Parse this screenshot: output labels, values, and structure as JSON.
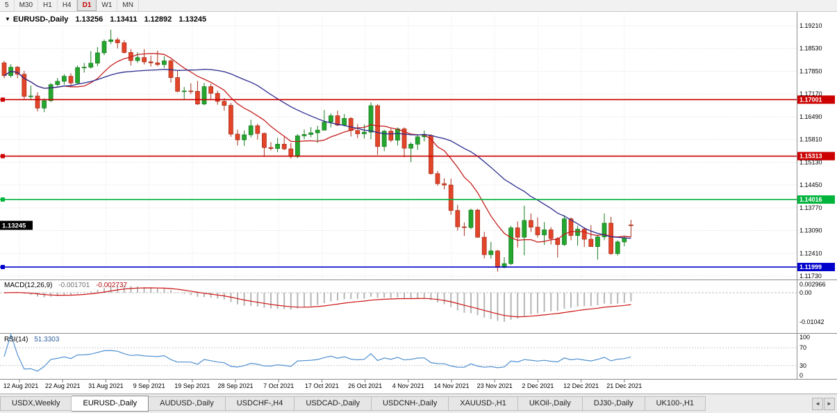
{
  "icons": {
    "collapse": "▼"
  },
  "toolbar": {
    "timeframes": [
      {
        "label": "5",
        "active": false
      },
      {
        "label": "M30",
        "active": false
      },
      {
        "label": "H1",
        "active": false
      },
      {
        "label": "H4",
        "active": false
      },
      {
        "label": "D1",
        "active": true
      },
      {
        "label": "W1",
        "active": false
      },
      {
        "label": "MN",
        "active": false
      }
    ]
  },
  "chart_data": {
    "type": "candlestick",
    "title": "EURUSD-,Daily",
    "ohlc_display": {
      "open": "1.13256",
      "high": "1.13411",
      "low": "1.12892",
      "close": "1.13245"
    },
    "price_axis_labels": [
      "1.19210",
      "1.18530",
      "1.17850",
      "1.17170",
      "1.16490",
      "1.15810",
      "1.15130",
      "1.14450",
      "1.13770",
      "1.13090",
      "1.12410",
      "1.11730"
    ],
    "date_labels": [
      "12 Aug 2021",
      "22 Aug 2021",
      "31 Aug 2021",
      "9 Sep 2021",
      "19 Sep 2021",
      "28 Sep 2021",
      "7 Oct 2021",
      "17 Oct 2021",
      "26 Oct 2021",
      "4 Nov 2021",
      "14 Nov 2021",
      "23 Nov 2021",
      "2 Dec 2021",
      "12 Dec 2021",
      "21 Dec 2021"
    ],
    "hlines": [
      {
        "price": 1.17001,
        "label": "1.17001",
        "color": "#cc0000"
      },
      {
        "price": 1.15313,
        "label": "1.15313",
        "color": "#cc0000"
      },
      {
        "price": 1.14016,
        "label": "1.14016",
        "color": "#00b43c"
      },
      {
        "price": 1.11999,
        "label": "1.11999",
        "color": "#0000cc"
      }
    ],
    "current_price": {
      "price": 1.13245,
      "label": "1.13245",
      "bg": "#000000"
    },
    "moving_averages": [
      {
        "period": 10,
        "color": "#c61d1d"
      },
      {
        "period": 24,
        "color": "#2a2a8f"
      }
    ],
    "colors": {
      "up": "#25a62e",
      "up_stroke": "#177a1f",
      "down": "#e2452a",
      "down_stroke": "#a82c17",
      "grid": "#d9d9d9"
    },
    "candles": [
      [
        1.181,
        1.1816,
        1.1764,
        1.1772
      ],
      [
        1.1772,
        1.1806,
        1.1766,
        1.1797
      ],
      [
        1.1797,
        1.1801,
        1.1764,
        1.1776
      ],
      [
        1.1776,
        1.1786,
        1.1702,
        1.171
      ],
      [
        1.171,
        1.1742,
        1.17,
        1.1711
      ],
      [
        1.1711,
        1.1722,
        1.1665,
        1.1675
      ],
      [
        1.1675,
        1.1704,
        1.1663,
        1.1697
      ],
      [
        1.1697,
        1.175,
        1.1693,
        1.1745
      ],
      [
        1.1745,
        1.1765,
        1.174,
        1.1755
      ],
      [
        1.1755,
        1.1776,
        1.1745,
        1.177
      ],
      [
        1.177,
        1.1779,
        1.1743,
        1.175
      ],
      [
        1.175,
        1.1802,
        1.1748,
        1.1796
      ],
      [
        1.1796,
        1.181,
        1.1781,
        1.1797
      ],
      [
        1.1797,
        1.1845,
        1.1793,
        1.1809
      ],
      [
        1.1809,
        1.1857,
        1.18,
        1.184
      ],
      [
        1.184,
        1.188,
        1.1833,
        1.1874
      ],
      [
        1.1874,
        1.1909,
        1.1866,
        1.1879
      ],
      [
        1.1879,
        1.1885,
        1.1853,
        1.187
      ],
      [
        1.187,
        1.1878,
        1.1838,
        1.1841
      ],
      [
        1.1841,
        1.1851,
        1.1802,
        1.1817
      ],
      [
        1.1817,
        1.1842,
        1.181,
        1.1826
      ],
      [
        1.1826,
        1.1851,
        1.1805,
        1.1813
      ],
      [
        1.1813,
        1.1832,
        1.1799,
        1.181
      ],
      [
        1.181,
        1.1847,
        1.18,
        1.1805
      ],
      [
        1.1805,
        1.183,
        1.1795,
        1.1816
      ],
      [
        1.1816,
        1.1821,
        1.1751,
        1.1766
      ],
      [
        1.1766,
        1.1788,
        1.1722,
        1.1725
      ],
      [
        1.1725,
        1.1738,
        1.17,
        1.1726
      ],
      [
        1.1726,
        1.1749,
        1.1717,
        1.1725
      ],
      [
        1.1725,
        1.1756,
        1.1684,
        1.1687
      ],
      [
        1.1687,
        1.175,
        1.1683,
        1.1739
      ],
      [
        1.1739,
        1.1747,
        1.1701,
        1.1719
      ],
      [
        1.1719,
        1.1727,
        1.1685,
        1.1695
      ],
      [
        1.1695,
        1.1705,
        1.1667,
        1.1683
      ],
      [
        1.1683,
        1.169,
        1.1589,
        1.1597
      ],
      [
        1.1597,
        1.161,
        1.1563,
        1.158
      ],
      [
        1.158,
        1.1608,
        1.1562,
        1.1595
      ],
      [
        1.1595,
        1.164,
        1.1587,
        1.1622
      ],
      [
        1.1622,
        1.1628,
        1.1581,
        1.1599
      ],
      [
        1.1599,
        1.1602,
        1.1529,
        1.1557
      ],
      [
        1.1557,
        1.1573,
        1.1548,
        1.1554
      ],
      [
        1.1554,
        1.1586,
        1.1543,
        1.1567
      ],
      [
        1.1567,
        1.1589,
        1.1549,
        1.1553
      ],
      [
        1.1553,
        1.1571,
        1.1524,
        1.153
      ],
      [
        1.153,
        1.1597,
        1.1525,
        1.1592
      ],
      [
        1.1592,
        1.1611,
        1.1582,
        1.1596
      ],
      [
        1.1596,
        1.1618,
        1.1588,
        1.1601
      ],
      [
        1.1601,
        1.1622,
        1.1571,
        1.1609
      ],
      [
        1.1609,
        1.1669,
        1.1608,
        1.1633
      ],
      [
        1.1633,
        1.1659,
        1.1617,
        1.1652
      ],
      [
        1.1652,
        1.1667,
        1.1621,
        1.1624
      ],
      [
        1.1624,
        1.1657,
        1.162,
        1.1644
      ],
      [
        1.1644,
        1.1648,
        1.159,
        1.1608
      ],
      [
        1.1608,
        1.1627,
        1.1585,
        1.1598
      ],
      [
        1.1598,
        1.1626,
        1.1584,
        1.1603
      ],
      [
        1.1603,
        1.1692,
        1.1582,
        1.1682
      ],
      [
        1.1682,
        1.1687,
        1.1535,
        1.156
      ],
      [
        1.156,
        1.161,
        1.1546,
        1.1606
      ],
      [
        1.1606,
        1.1614,
        1.1573,
        1.1579
      ],
      [
        1.1579,
        1.1617,
        1.1563,
        1.1613
      ],
      [
        1.1613,
        1.1617,
        1.1528,
        1.1555
      ],
      [
        1.1555,
        1.1573,
        1.1513,
        1.1567
      ],
      [
        1.1567,
        1.1595,
        1.155,
        1.1589
      ],
      [
        1.1589,
        1.1608,
        1.1575,
        1.1593
      ],
      [
        1.1593,
        1.1597,
        1.1476,
        1.1479
      ],
      [
        1.1479,
        1.1487,
        1.1443,
        1.1449
      ],
      [
        1.1449,
        1.1465,
        1.1432,
        1.1445
      ],
      [
        1.1445,
        1.1464,
        1.1356,
        1.1369
      ],
      [
        1.1369,
        1.1386,
        1.1309,
        1.132
      ],
      [
        1.132,
        1.1333,
        1.1293,
        1.1318
      ],
      [
        1.1318,
        1.1374,
        1.1313,
        1.137
      ],
      [
        1.137,
        1.1374,
        1.1287,
        1.1289
      ],
      [
        1.1289,
        1.1305,
        1.1226,
        1.1237
      ],
      [
        1.1237,
        1.1275,
        1.1225,
        1.1248
      ],
      [
        1.1248,
        1.1251,
        1.1186,
        1.1199
      ],
      [
        1.1199,
        1.1229,
        1.1196,
        1.121
      ],
      [
        1.121,
        1.1323,
        1.1206,
        1.1317
      ],
      [
        1.1317,
        1.1336,
        1.1258,
        1.1289
      ],
      [
        1.1289,
        1.1383,
        1.1235,
        1.1339
      ],
      [
        1.1339,
        1.136,
        1.1305,
        1.1319
      ],
      [
        1.1319,
        1.1348,
        1.1288,
        1.1296
      ],
      [
        1.1296,
        1.1334,
        1.1266,
        1.1311
      ],
      [
        1.1311,
        1.1319,
        1.1267,
        1.1285
      ],
      [
        1.1285,
        1.129,
        1.1228,
        1.1267
      ],
      [
        1.1267,
        1.1355,
        1.1263,
        1.1344
      ],
      [
        1.1344,
        1.1348,
        1.128,
        1.1294
      ],
      [
        1.1294,
        1.1324,
        1.1264,
        1.1313
      ],
      [
        1.1313,
        1.1319,
        1.126,
        1.1283
      ],
      [
        1.1283,
        1.1325,
        1.1262,
        1.1261
      ],
      [
        1.1261,
        1.1296,
        1.1222,
        1.129
      ],
      [
        1.129,
        1.136,
        1.128,
        1.1331
      ],
      [
        1.1331,
        1.135,
        1.1236,
        1.124
      ],
      [
        1.124,
        1.128,
        1.1234,
        1.1275
      ],
      [
        1.1275,
        1.1294,
        1.1262,
        1.1287
      ],
      [
        1.13256,
        1.13411,
        1.12892,
        1.13245
      ]
    ]
  },
  "macd": {
    "label": "MACD(12,26,9)",
    "value_main": "-0.001701",
    "value_signal": "-0.002737",
    "fast": 12,
    "slow": 26,
    "signal": 9,
    "axis_labels": [
      {
        "text": "0.002966",
        "value": 0.002966
      },
      {
        "text": "0.00",
        "value": 0
      },
      {
        "text": "-0.01042",
        "value": -0.01042
      }
    ],
    "histogram_color": "#b6b6b6",
    "signal_color": "#cc1212"
  },
  "rsi": {
    "label": "RSI(14)",
    "value": "51.3303",
    "period": 14,
    "levels": [
      70,
      30
    ],
    "axis_labels": [
      "100",
      "70",
      "30",
      "0"
    ],
    "line_color": "#4f8fd0"
  },
  "tabs": [
    {
      "label": "USDX,Weekly",
      "active": false
    },
    {
      "label": "EURUSD-,Daily",
      "active": true
    },
    {
      "label": "AUDUSD-,Daily",
      "active": false
    },
    {
      "label": "USDCHF-,H4",
      "active": false
    },
    {
      "label": "USDCAD-,Daily",
      "active": false
    },
    {
      "label": "USDCNH-,Daily",
      "active": false
    },
    {
      "label": "XAUUSD-,H1",
      "active": false
    },
    {
      "label": "UKOil-,Daily",
      "active": false
    },
    {
      "label": "DJ30-,Daily",
      "active": false
    },
    {
      "label": "UK100-,H1",
      "active": false
    }
  ],
  "tab_scroll": {
    "left": "◄",
    "right": "►"
  }
}
